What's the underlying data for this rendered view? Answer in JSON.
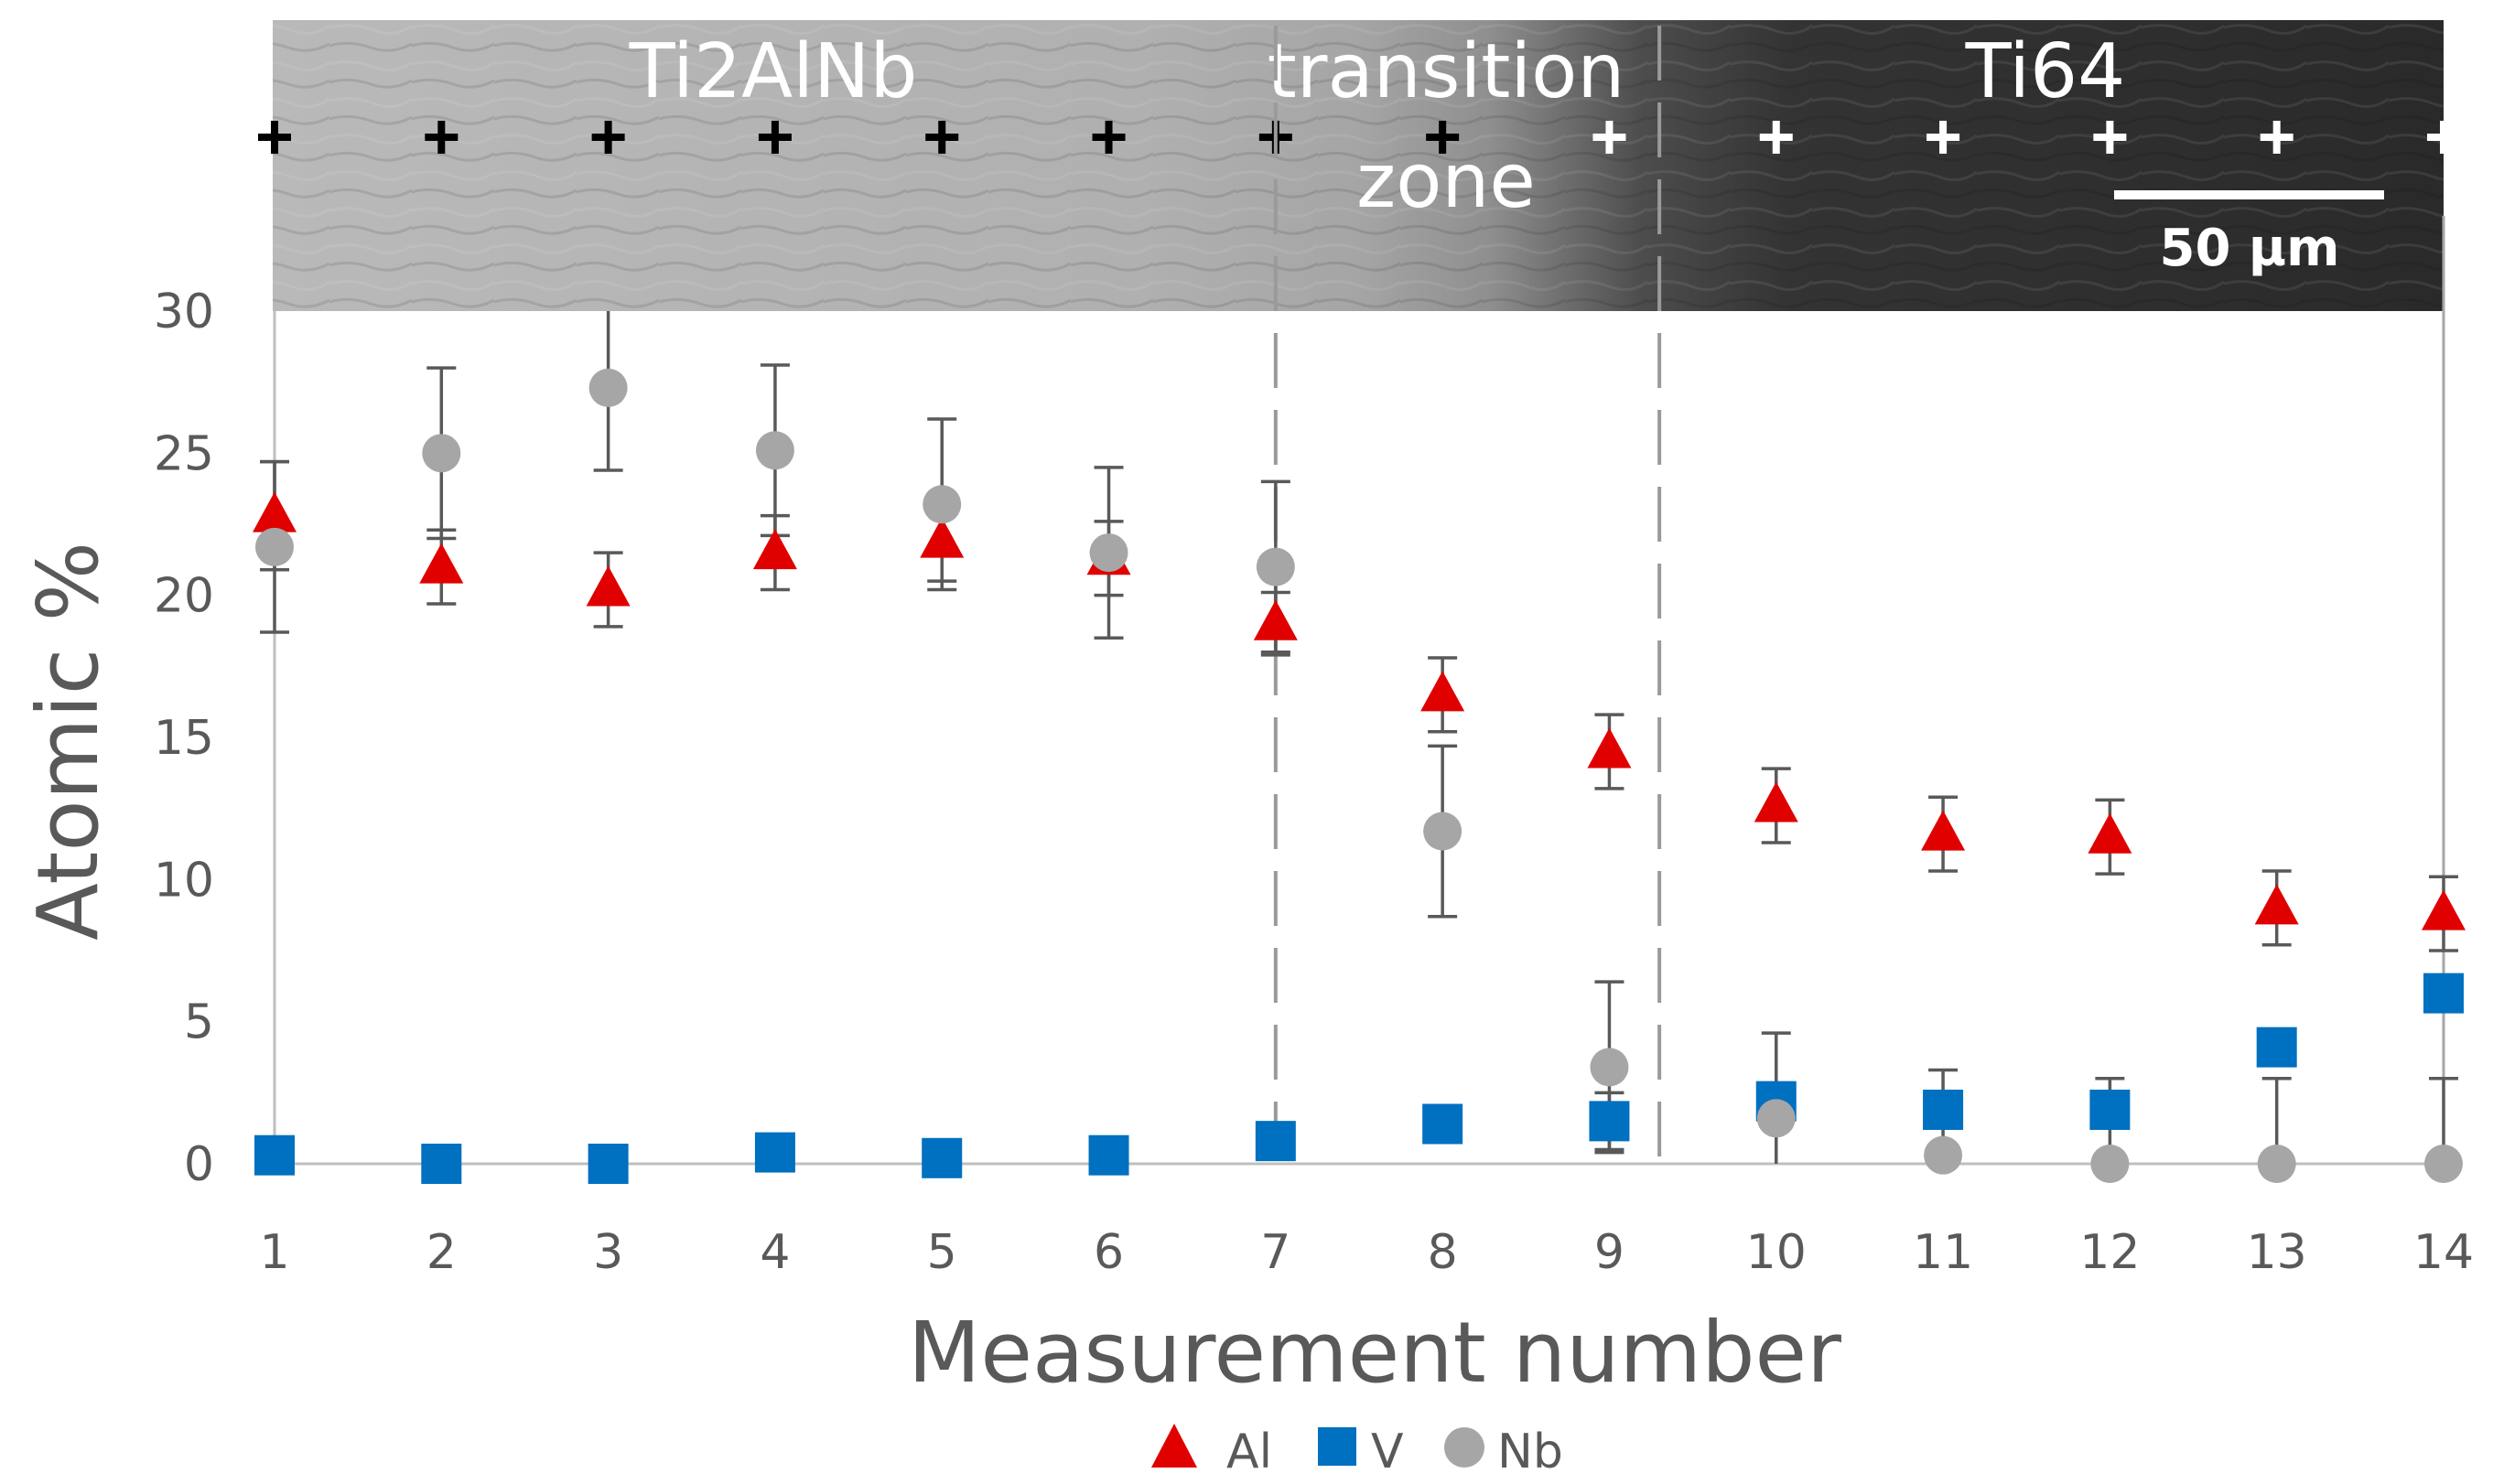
{
  "chart_data": {
    "type": "scatter",
    "xlabel": "Measurement number",
    "ylabel": "Atomic %",
    "x": [
      1,
      2,
      3,
      4,
      5,
      6,
      7,
      8,
      9,
      10,
      11,
      12,
      13,
      14
    ],
    "xlim": [
      1,
      14
    ],
    "ylim": [
      0,
      30
    ],
    "y_ticks": [
      "0",
      "5",
      "10",
      "15",
      "20",
      "25",
      "30"
    ],
    "x_ticks": [
      "1",
      "2",
      "3",
      "4",
      "5",
      "6",
      "7",
      "8",
      "9",
      "10",
      "11",
      "12",
      "13",
      "14"
    ],
    "grid": false,
    "legend_position": "bottom-center",
    "series": [
      {
        "name": "Al",
        "marker": "triangle",
        "color": "#e00000",
        "values": [
          22.8,
          21.0,
          20.2,
          21.5,
          21.9,
          21.3,
          19.0,
          16.5,
          14.5,
          12.6,
          11.6,
          11.5,
          9.0,
          8.8
        ],
        "error": [
          1.9,
          1.3,
          1.3,
          1.3,
          1.4,
          1.3,
          1.1,
          1.3,
          1.3,
          1.3,
          1.3,
          1.3,
          1.3,
          1.3
        ]
      },
      {
        "name": "V",
        "marker": "square",
        "color": "#0070c0",
        "values": [
          0.3,
          0.0,
          0.0,
          0.4,
          0.2,
          0.3,
          0.8,
          1.4,
          1.5,
          2.2,
          1.9,
          1.9,
          4.1,
          6.0
        ],
        "error": [
          0,
          0,
          0,
          0,
          0,
          0,
          0,
          0,
          1.0,
          0,
          0,
          0,
          0,
          0
        ]
      },
      {
        "name": "Nb",
        "marker": "circle",
        "color": "#a6a6a6",
        "values": [
          21.7,
          25.0,
          27.3,
          25.1,
          23.2,
          21.5,
          21.0,
          11.7,
          3.4,
          1.6,
          0.3,
          0.0,
          0.0,
          0.0
        ],
        "error": [
          3.0,
          3.0,
          2.9,
          3.0,
          3.0,
          3.0,
          3.0,
          3.0,
          3.0,
          3.0,
          3.0,
          3.0,
          3.0,
          3.0
        ]
      }
    ],
    "regions": [
      {
        "label": "Ti2AlNb"
      },
      {
        "label_line1": "transition",
        "label_line2": "zone"
      },
      {
        "label": "Ti64"
      }
    ],
    "region_boundaries_x": [
      7,
      9.3
    ],
    "scale_bar_label": "50 µm",
    "measurement_marker_color_light": "#ffffff",
    "measurement_marker_color_dark": "#000000"
  }
}
